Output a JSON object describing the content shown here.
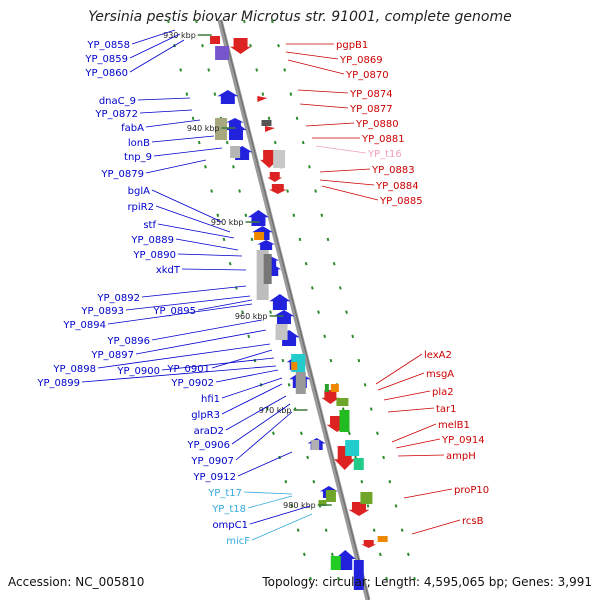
{
  "title": "Yersinia pestis biovar Microtus str. 91001, complete genome",
  "footer": {
    "accession": "Accession: NC_005810",
    "stats": "Topology: circular; Length: 4,595,065 bp; Genes: 3,991"
  },
  "colors": {
    "backbone": "#8c8c8c",
    "forward_label": "#0000cc",
    "reverse_label": "#cc0000",
    "trna_label": "#33aadd",
    "tick": "#2a8a2a",
    "light_red_label": "#f0a0b8"
  },
  "ticks": [
    "930 kbp",
    "940 kbp",
    "950 kbp",
    "960 kbp",
    "970 kbp",
    "980 kbp"
  ],
  "left_labels": [
    {
      "text": "YP_0858",
      "color": "forward"
    },
    {
      "text": "YP_0859",
      "color": "forward"
    },
    {
      "text": "YP_0860",
      "color": "forward"
    },
    {
      "text": "dnaC_9",
      "color": "forward"
    },
    {
      "text": "YP_0872",
      "color": "forward"
    },
    {
      "text": "fabA",
      "color": "forward"
    },
    {
      "text": "lonB",
      "color": "forward"
    },
    {
      "text": "tnp_9",
      "color": "forward"
    },
    {
      "text": "YP_0879",
      "color": "forward"
    },
    {
      "text": "bglA",
      "color": "forward"
    },
    {
      "text": "rpiR2",
      "color": "forward"
    },
    {
      "text": "stf",
      "color": "forward"
    },
    {
      "text": "YP_0889",
      "color": "forward"
    },
    {
      "text": "YP_0890",
      "color": "forward"
    },
    {
      "text": "xkdT",
      "color": "forward"
    },
    {
      "text": "YP_0892",
      "color": "forward"
    },
    {
      "text": "YP_0893",
      "color": "forward"
    },
    {
      "text": "YP_0895",
      "color": "forward"
    },
    {
      "text": "YP_0894",
      "color": "forward"
    },
    {
      "text": "YP_0896",
      "color": "forward"
    },
    {
      "text": "YP_0897",
      "color": "forward"
    },
    {
      "text": "YP_0898",
      "color": "forward"
    },
    {
      "text": "YP_0901",
      "color": "forward"
    },
    {
      "text": "YP_0900",
      "color": "forward"
    },
    {
      "text": "YP_0899",
      "color": "forward"
    },
    {
      "text": "YP_0902",
      "color": "forward"
    },
    {
      "text": "hfi1",
      "color": "forward"
    },
    {
      "text": "glpR3",
      "color": "forward"
    },
    {
      "text": "araD2",
      "color": "forward"
    },
    {
      "text": "YP_0906",
      "color": "forward"
    },
    {
      "text": "YP_0907",
      "color": "forward"
    },
    {
      "text": "YP_0912",
      "color": "forward"
    },
    {
      "text": "YP_t17",
      "color": "trna"
    },
    {
      "text": "YP_t18",
      "color": "trna"
    },
    {
      "text": "ompC1",
      "color": "forward"
    },
    {
      "text": "micF",
      "color": "trna"
    }
  ],
  "right_labels": [
    {
      "text": "pgpB1",
      "color": "reverse"
    },
    {
      "text": "YP_0869",
      "color": "reverse"
    },
    {
      "text": "YP_0870",
      "color": "reverse"
    },
    {
      "text": "YP_0874",
      "color": "reverse"
    },
    {
      "text": "YP_0877",
      "color": "reverse"
    },
    {
      "text": "YP_0880",
      "color": "reverse"
    },
    {
      "text": "YP_0881",
      "color": "reverse"
    },
    {
      "text": "YP_t16",
      "color": "light_red"
    },
    {
      "text": "YP_0883",
      "color": "reverse"
    },
    {
      "text": "YP_0884",
      "color": "reverse"
    },
    {
      "text": "YP_0885",
      "color": "reverse"
    },
    {
      "text": "lexA2",
      "color": "reverse"
    },
    {
      "text": "msgA",
      "color": "reverse"
    },
    {
      "text": "pla2",
      "color": "reverse"
    },
    {
      "text": "tar1",
      "color": "reverse"
    },
    {
      "text": "melB1",
      "color": "reverse"
    },
    {
      "text": "YP_0914",
      "color": "reverse"
    },
    {
      "text": "ampH",
      "color": "reverse"
    },
    {
      "text": "proP10",
      "color": "reverse"
    },
    {
      "text": "rcsB",
      "color": "reverse"
    }
  ]
}
